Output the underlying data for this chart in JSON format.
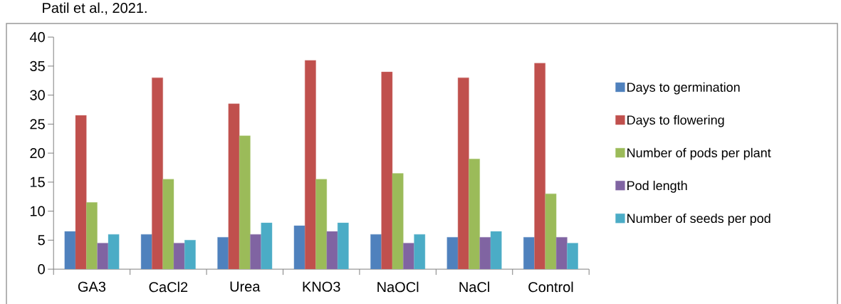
{
  "chart_data": {
    "type": "bar",
    "annotations": [
      "Patil et al., 2021."
    ],
    "categories": [
      "GA3",
      "CaCl2",
      "Urea",
      "KNO3",
      "NaOCl",
      "NaCl",
      "Control"
    ],
    "series": [
      {
        "name": "Days to germination",
        "color": "#4f81bd",
        "values": [
          6.5,
          6,
          5.5,
          7.5,
          6,
          5.5,
          5.5
        ]
      },
      {
        "name": "Days to flowering",
        "color": "#c0504d",
        "values": [
          26.5,
          33,
          28.5,
          36,
          34,
          33,
          35.5
        ]
      },
      {
        "name": "Number of pods per plant",
        "color": "#9bbb59",
        "values": [
          11.5,
          15.5,
          23,
          15.5,
          16.5,
          19,
          13
        ]
      },
      {
        "name": "Pod length",
        "color": "#8064a2",
        "values": [
          4.5,
          4.5,
          6,
          6.5,
          4.5,
          5.5,
          5.5
        ]
      },
      {
        "name": "Number of seeds per pod",
        "color": "#4bacc6",
        "values": [
          6,
          5,
          8,
          8,
          6,
          6.5,
          4.5
        ]
      }
    ],
    "ylim": [
      0,
      40
    ],
    "yticks": [
      0,
      5,
      10,
      15,
      20,
      25,
      30,
      35,
      40
    ],
    "grid": false,
    "legend": "right"
  }
}
